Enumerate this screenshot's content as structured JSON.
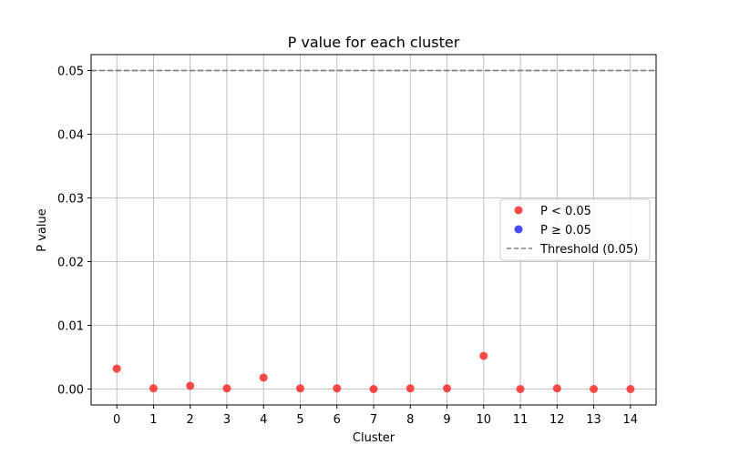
{
  "chart_data": {
    "type": "scatter",
    "title": "P value for each cluster",
    "xlabel": "Cluster",
    "ylabel": "P value",
    "x_ticks": [
      "0",
      "1",
      "2",
      "3",
      "4",
      "5",
      "6",
      "7",
      "8",
      "9",
      "10",
      "11",
      "12",
      "13",
      "14"
    ],
    "y_ticks": [
      "0.00",
      "0.01",
      "0.02",
      "0.03",
      "0.04",
      "0.05"
    ],
    "xlim": [
      -0.7,
      14.7
    ],
    "ylim": [
      -0.0025,
      0.0525
    ],
    "grid": true,
    "legend_position": "center-right",
    "threshold": {
      "label": "Threshold (0.05)",
      "value": 0.05,
      "color": "#808080",
      "style": "dashed"
    },
    "series": [
      {
        "name": "P < 0.05",
        "color": "#ff2a2a",
        "x": [
          0,
          1,
          2,
          3,
          4,
          5,
          6,
          7,
          8,
          9,
          10,
          11,
          12,
          13,
          14
        ],
        "y": [
          0.0032,
          0.0001,
          0.0005,
          0.0001,
          0.0018,
          0.0001,
          0.0001,
          0.0,
          0.0001,
          0.0001,
          0.0052,
          0.0,
          0.0001,
          0.0,
          0.0
        ]
      },
      {
        "name": "P ≥ 0.05",
        "color": "#2a2aff",
        "x": [],
        "y": []
      }
    ]
  }
}
